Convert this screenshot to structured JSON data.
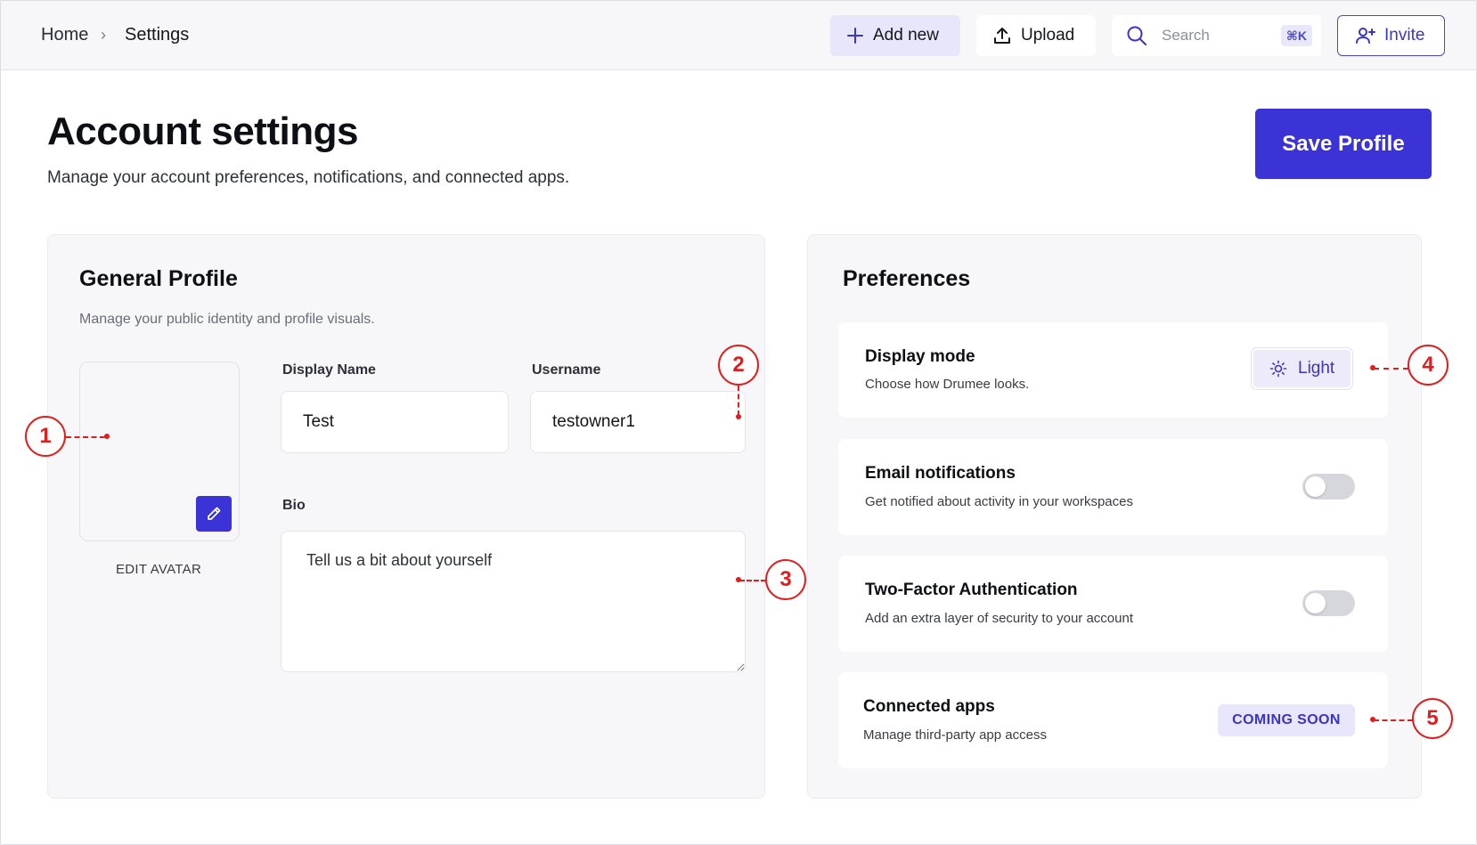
{
  "breadcrumb": {
    "home": "Home",
    "separator": "›",
    "current": "Settings"
  },
  "toolbar": {
    "add_new_label": "Add new",
    "upload_label": "Upload",
    "search_placeholder": "Search",
    "search_shortcut": "⌘K",
    "invite_label": "Invite"
  },
  "page": {
    "title": "Account settings",
    "subtitle": "Manage your account preferences, notifications, and connected apps.",
    "save_label": "Save Profile"
  },
  "general_profile": {
    "title": "General Profile",
    "description": "Manage your public identity and profile visuals.",
    "avatar_label": "EDIT AVATAR",
    "display_name_label": "Display Name",
    "display_name_value": "Test",
    "username_label": "Username",
    "username_value": "testowner1",
    "bio_label": "Bio",
    "bio_placeholder": "Tell us a bit about yourself"
  },
  "preferences": {
    "title": "Preferences",
    "display_mode": {
      "title": "Display mode",
      "description": "Choose how Drumee looks.",
      "value": "Light"
    },
    "email_notifications": {
      "title": "Email notifications",
      "description": "Get notified about activity in your workspaces",
      "enabled": false
    },
    "two_factor": {
      "title": "Two-Factor Authentication",
      "description": "Add an extra layer of security to your account",
      "enabled": false
    },
    "connected_apps": {
      "title": "Connected apps",
      "description": "Manage third-party app access",
      "badge": "COMING SOON"
    }
  },
  "annotations": [
    "1",
    "2",
    "3",
    "4",
    "5"
  ],
  "colors": {
    "accent": "#3b33d6",
    "accent_soft": "#e7e6fb",
    "annotation": "#e01e1e",
    "card_bg": "#f7f7f9"
  },
  "icons": [
    "plus-icon",
    "upload-icon",
    "search-icon",
    "user-plus-icon",
    "pencil-icon",
    "sun-icon",
    "chevron-right-icon"
  ]
}
